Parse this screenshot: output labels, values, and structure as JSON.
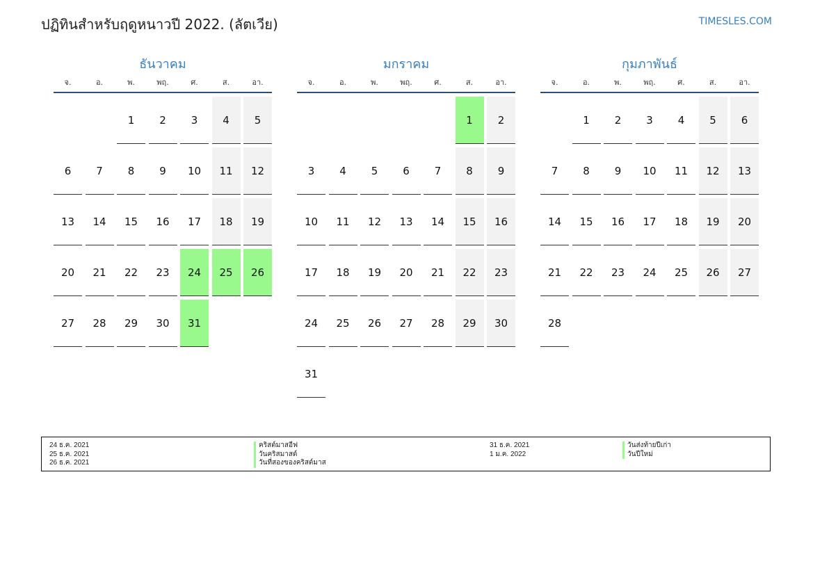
{
  "title": "ปฏิทินสำหรับฤดูหนาวปี 2022. (ลัตเวีย)",
  "site": "TIMESLES.COM",
  "weekdays": [
    "จ.",
    "อ.",
    "พ.",
    "พฤ.",
    "ศ.",
    "ส.",
    "อา."
  ],
  "months": [
    {
      "name": "ธันวาคม",
      "start_offset": 2,
      "days": 31,
      "holidays": [
        24,
        25,
        26,
        31
      ]
    },
    {
      "name": "มกราคม",
      "start_offset": 5,
      "days": 31,
      "holidays": [
        1
      ]
    },
    {
      "name": "กุมภาพันธ์",
      "start_offset": 1,
      "days": 28,
      "holidays": []
    }
  ],
  "legend_left": [
    {
      "date": "24 ธ.ค. 2021",
      "name": "คริสต์มาสอีฟ"
    },
    {
      "date": "25 ธ.ค. 2021",
      "name": "วันคริสมาสต์"
    },
    {
      "date": "26 ธ.ค. 2021",
      "name": "วันที่สองของคริสต์มาส"
    }
  ],
  "legend_right": [
    {
      "date": "31 ธ.ค. 2021",
      "name": "วันส่งท้ายปีเก่า"
    },
    {
      "date": "1 ม.ค. 2022",
      "name": "วันปีใหม่"
    }
  ],
  "colors": {
    "accent": "#3a7fbf",
    "holiday": "#99f98c",
    "weekend": "#f2f2f2",
    "rule": "#2d4e73"
  }
}
